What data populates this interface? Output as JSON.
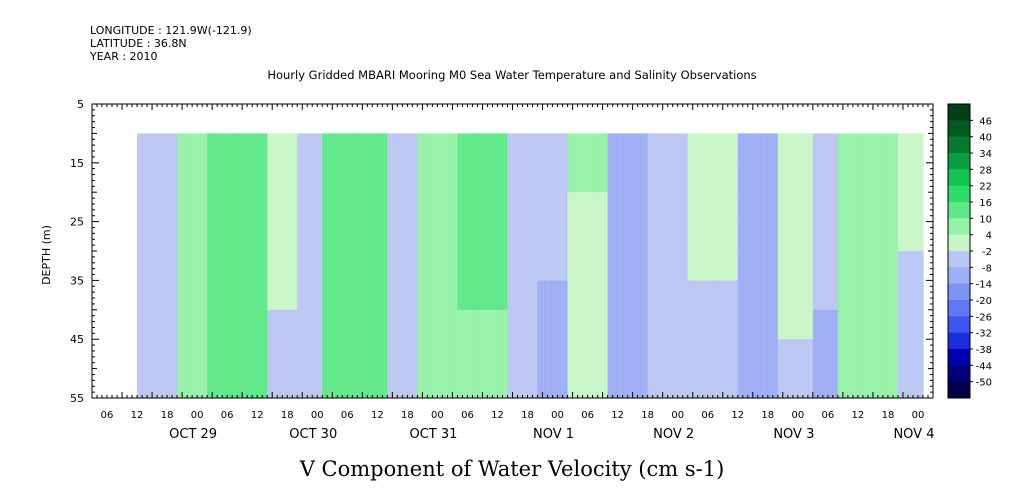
{
  "header": {
    "longitude": "LONGITUDE : 121.9W(-121.9)",
    "latitude": "LATITUDE : 36.8N",
    "year": "YEAR : 2010"
  },
  "chart_data": {
    "type": "heatmap",
    "title": "Hourly Gridded MBARI Mooring M0 Sea Water Temperature and Salinity Observations",
    "xlabel": "V Component of Water Velocity (cm s-1)",
    "ylabel": "DEPTH (m)",
    "ylim": [
      5,
      55
    ],
    "y_reversed": true,
    "y_ticks": [
      5,
      15,
      25,
      35,
      45,
      55
    ],
    "data_depth_range": [
      10,
      55
    ],
    "x_range_hours": [
      "2010-10-29T03:00",
      "2010-11-05T03:00"
    ],
    "data_start": "2010-10-29T12:00",
    "hour_ticks": [
      "06",
      "12",
      "18",
      "00",
      "06",
      "12",
      "18",
      "00",
      "06",
      "12",
      "18",
      "00",
      "06",
      "12",
      "18",
      "00",
      "06",
      "12",
      "18",
      "00",
      "06",
      "12",
      "18",
      "00",
      "06",
      "12",
      "18",
      "00"
    ],
    "day_labels": [
      "OCT 29",
      "OCT 30",
      "OCT 31",
      "NOV  1",
      "NOV  2",
      "NOV  3",
      "NOV  4",
      "NOV  5"
    ],
    "colorbar": {
      "levels": [
        -50,
        -44,
        -38,
        -32,
        -26,
        -20,
        -14,
        -8,
        -2,
        4,
        10,
        16,
        22,
        28,
        34,
        40,
        46
      ],
      "labels": [
        "46",
        "40",
        "34",
        "28",
        "22",
        "16",
        "10",
        "4",
        "-2",
        "-8",
        "-14",
        "-20",
        "-26",
        "-32",
        "-38",
        "-44",
        "-50"
      ],
      "colors": [
        "#00004a",
        "#00007a",
        "#0000b0",
        "#1a2ee0",
        "#3d55f0",
        "#5f78f5",
        "#7f93f5",
        "#9eaef5",
        "#bcc6f2",
        "#c8f5c8",
        "#96f2a8",
        "#5ee888",
        "#2fdc6a",
        "#13c452",
        "#0a9e40",
        "#067a30",
        "#035a22",
        "#023e17"
      ]
    },
    "columns": [
      {
        "start": "2010-10-29T12:00",
        "end": "2010-10-29T20:00",
        "top": -4,
        "bottom": -6
      },
      {
        "start": "2010-10-29T20:00",
        "end": "2010-10-30T02:00",
        "top": 8,
        "bottom": 6
      },
      {
        "start": "2010-10-30T02:00",
        "end": "2010-10-30T14:00",
        "top": 10,
        "bottom": 14
      },
      {
        "start": "2010-10-30T14:00",
        "end": "2010-10-30T20:00",
        "top": 2,
        "bottom": -4
      },
      {
        "start": "2010-10-30T20:00",
        "end": "2010-10-31T01:00",
        "top": -6,
        "bottom": -8
      },
      {
        "start": "2010-10-31T01:00",
        "end": "2010-10-31T14:00",
        "top": 12,
        "bottom": 16
      },
      {
        "start": "2010-10-31T14:00",
        "end": "2010-10-31T20:00",
        "top": -4,
        "bottom": -6
      },
      {
        "start": "2010-10-31T20:00",
        "end": "2010-11-01T04:00",
        "top": 8,
        "bottom": 6
      },
      {
        "start": "2010-11-01T04:00",
        "end": "2010-11-01T14:00",
        "top": 14,
        "bottom": 8
      },
      {
        "start": "2010-11-01T14:00",
        "end": "2010-11-01T20:00",
        "top": -2,
        "bottom": -6
      },
      {
        "start": "2010-11-01T20:00",
        "end": "2010-11-02T02:00",
        "top": -6,
        "bottom": -10
      },
      {
        "start": "2010-11-02T02:00",
        "end": "2010-11-02T10:00",
        "top": 6,
        "bottom": -2
      },
      {
        "start": "2010-11-02T10:00",
        "end": "2010-11-02T18:00",
        "top": -8,
        "bottom": -12
      },
      {
        "start": "2010-11-02T18:00",
        "end": "2010-11-03T02:00",
        "top": -4,
        "bottom": -8
      },
      {
        "start": "2010-11-03T02:00",
        "end": "2010-11-03T12:00",
        "top": 4,
        "bottom": -6
      },
      {
        "start": "2010-11-03T12:00",
        "end": "2010-11-03T20:00",
        "top": -8,
        "bottom": -10
      },
      {
        "start": "2010-11-03T20:00",
        "end": "2010-11-04T03:00",
        "top": 4,
        "bottom": -4
      },
      {
        "start": "2010-11-04T03:00",
        "end": "2010-11-04T08:00",
        "top": -4,
        "bottom": -10
      },
      {
        "start": "2010-11-04T08:00",
        "end": "2010-11-04T20:00",
        "top": 8,
        "bottom": 4
      },
      {
        "start": "2010-11-04T20:00",
        "end": "2010-11-05T01:00",
        "top": 2,
        "bottom": -8
      }
    ]
  }
}
